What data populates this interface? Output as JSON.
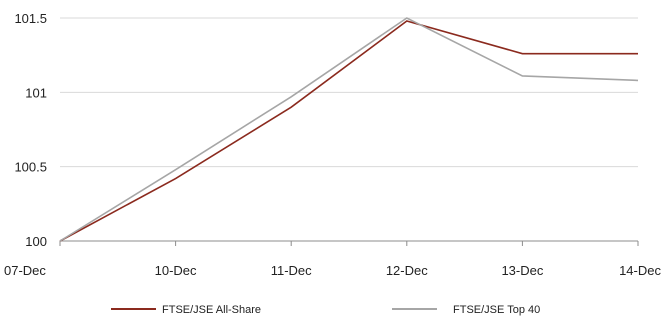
{
  "chart_data": {
    "type": "line",
    "title": "",
    "xlabel": "",
    "ylabel": "",
    "categories": [
      "07-Dec",
      "10-Dec",
      "11-Dec",
      "12-Dec",
      "13-Dec",
      "14-Dec"
    ],
    "ylim": [
      100,
      101.5
    ],
    "yticks": [
      "100",
      "100.5",
      "101",
      "101.5"
    ],
    "grid": "horizontal",
    "legend_position": "bottom",
    "series": [
      {
        "name": "FTSE/JSE All-Share",
        "color": "#8b2a1e",
        "values": [
          100,
          100.42,
          100.9,
          101.48,
          101.26,
          101.26
        ]
      },
      {
        "name": "FTSE/JSE Top 40",
        "color": "#a6a6a6",
        "values": [
          100,
          100.48,
          100.97,
          101.5,
          101.11,
          101.08
        ]
      }
    ]
  }
}
